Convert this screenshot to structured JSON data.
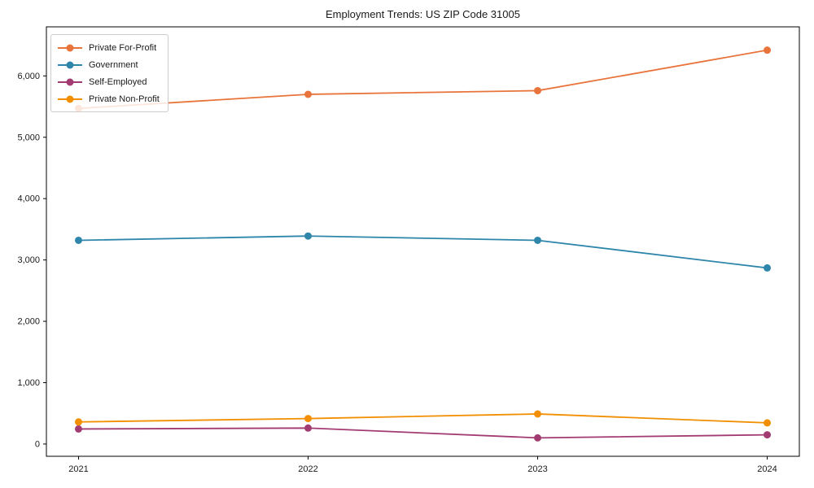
{
  "title": "Employment Trends: US ZIP Code 31005",
  "chart_data": {
    "type": "line",
    "title": "Employment Trends: US ZIP Code 31005",
    "x": [
      2021,
      2022,
      2023,
      2024
    ],
    "xtick_labels": [
      "2021",
      "2022",
      "2023",
      "2024"
    ],
    "yticks": [
      0,
      1000,
      2000,
      3000,
      4000,
      5000,
      6000
    ],
    "ytick_labels": [
      "0",
      "1,000",
      "2,000",
      "3,000",
      "4,000",
      "5,000",
      "6,000"
    ],
    "xlim": [
      2020.86,
      2024.14
    ],
    "ylim": [
      -200,
      6800
    ],
    "grid": false,
    "legend_position": "upper-left",
    "series": [
      {
        "name": "Private For-Profit",
        "color": "#E8743B",
        "values": [
          5470,
          5700,
          5760,
          6420
        ]
      },
      {
        "name": "Government",
        "color": "#2E86AB",
        "values": [
          3320,
          3390,
          3320,
          2870
        ]
      },
      {
        "name": "Self-Employed",
        "color": "#A23B72",
        "values": [
          245,
          260,
          100,
          150
        ]
      },
      {
        "name": "Private Non-Profit",
        "color": "#F18F01",
        "values": [
          360,
          415,
          490,
          345
        ]
      }
    ],
    "axis_color": "#000000",
    "marker_radius": 4.5,
    "line_width": 1.8
  }
}
